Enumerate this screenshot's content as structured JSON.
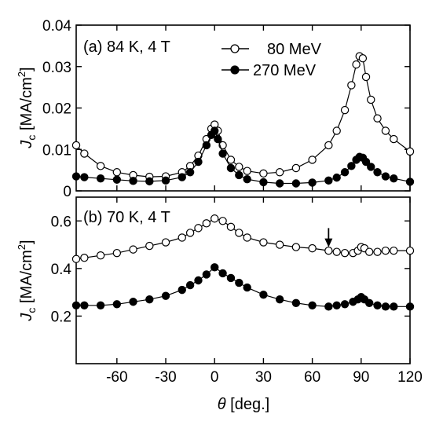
{
  "chart_data": [
    {
      "type": "scatter",
      "panel_label": "(b) 70 K, 4 T",
      "xlabel": "θ [deg.]",
      "ylabel": "Jc [MA/cm²]",
      "xlim": [
        -85,
        120
      ],
      "ylim": [
        0.0,
        0.7
      ],
      "xticks": [
        -60,
        -30,
        0,
        30,
        60,
        90,
        120
      ],
      "xtick_labels": [
        "-60",
        "-30",
        "0",
        "30",
        "60",
        "90",
        "120"
      ],
      "yticks": [
        0.2,
        0.4,
        0.6
      ],
      "ytick_labels": [
        "0.2",
        "0.4",
        "0.6"
      ],
      "grid": false,
      "annotation": {
        "type": "arrow",
        "x": 70,
        "from_y": 0.57,
        "to_y": 0.49
      },
      "series": [
        {
          "name": "80 MeV",
          "marker": "open-circle",
          "x": [
            -85,
            -80,
            -70,
            -60,
            -50,
            -40,
            -30,
            -20,
            -15,
            -10,
            -5,
            0,
            5,
            10,
            15,
            20,
            30,
            40,
            50,
            60,
            70,
            75,
            80,
            85,
            88,
            90,
            92,
            95,
            100,
            105,
            110,
            120
          ],
          "y": [
            0.44,
            0.445,
            0.455,
            0.465,
            0.48,
            0.495,
            0.51,
            0.53,
            0.55,
            0.57,
            0.59,
            0.61,
            0.6,
            0.575,
            0.55,
            0.53,
            0.51,
            0.5,
            0.49,
            0.485,
            0.475,
            0.47,
            0.465,
            0.465,
            0.475,
            0.49,
            0.485,
            0.47,
            0.47,
            0.475,
            0.475,
            0.475
          ]
        },
        {
          "name": "270 MeV",
          "marker": "filled-circle",
          "x": [
            -85,
            -80,
            -70,
            -60,
            -50,
            -40,
            -30,
            -20,
            -15,
            -10,
            -5,
            0,
            5,
            10,
            15,
            20,
            30,
            40,
            50,
            60,
            70,
            75,
            80,
            85,
            88,
            90,
            92,
            95,
            100,
            105,
            110,
            120
          ],
          "y": [
            0.245,
            0.245,
            0.245,
            0.25,
            0.26,
            0.27,
            0.285,
            0.31,
            0.33,
            0.35,
            0.375,
            0.405,
            0.38,
            0.36,
            0.34,
            0.32,
            0.29,
            0.27,
            0.255,
            0.245,
            0.24,
            0.245,
            0.25,
            0.26,
            0.27,
            0.28,
            0.27,
            0.255,
            0.245,
            0.24,
            0.24,
            0.24
          ]
        }
      ]
    },
    {
      "type": "scatter",
      "panel_label": "(a)  84 K, 4 T",
      "xlabel": "",
      "ylabel": "Jc [MA/cm²]",
      "xlim": [
        -85,
        120
      ],
      "ylim": [
        0.0,
        0.04
      ],
      "xticks": [
        -60,
        -30,
        0,
        30,
        60,
        90,
        120
      ],
      "yticks": [
        0.0,
        0.01,
        0.02,
        0.03,
        0.04
      ],
      "ytick_labels": [
        "0",
        "0.01",
        "0.02",
        "0.03",
        "0.04"
      ],
      "grid": false,
      "legend_position": "top-right",
      "series": [
        {
          "name": "80 MeV",
          "marker": "open-circle",
          "x": [
            -85,
            -80,
            -70,
            -60,
            -50,
            -40,
            -30,
            -20,
            -15,
            -10,
            -5,
            -2,
            0,
            2,
            5,
            10,
            15,
            20,
            30,
            40,
            50,
            60,
            70,
            75,
            80,
            84,
            87,
            89,
            91,
            93,
            96,
            100,
            105,
            110,
            120
          ],
          "y": [
            0.011,
            0.009,
            0.006,
            0.0045,
            0.0038,
            0.0034,
            0.0035,
            0.0045,
            0.006,
            0.0085,
            0.0125,
            0.015,
            0.016,
            0.0145,
            0.011,
            0.0075,
            0.0058,
            0.0048,
            0.0042,
            0.0045,
            0.0055,
            0.0075,
            0.011,
            0.0145,
            0.0195,
            0.0255,
            0.0305,
            0.0325,
            0.032,
            0.0275,
            0.022,
            0.0175,
            0.0145,
            0.0125,
            0.0095
          ]
        },
        {
          "name": "270 MeV",
          "marker": "filled-circle",
          "x": [
            -85,
            -80,
            -70,
            -60,
            -50,
            -40,
            -30,
            -20,
            -15,
            -10,
            -5,
            -2,
            0,
            2,
            5,
            10,
            15,
            20,
            30,
            40,
            50,
            60,
            70,
            75,
            80,
            84,
            87,
            89,
            91,
            93,
            96,
            100,
            105,
            110,
            120
          ],
          "y": [
            0.0035,
            0.0033,
            0.003,
            0.0027,
            0.0024,
            0.0023,
            0.0025,
            0.0033,
            0.0045,
            0.007,
            0.011,
            0.0135,
            0.0145,
            0.0125,
            0.009,
            0.0055,
            0.0038,
            0.0028,
            0.0021,
            0.0018,
            0.0018,
            0.002,
            0.0025,
            0.0032,
            0.0045,
            0.006,
            0.0075,
            0.0082,
            0.008,
            0.007,
            0.0058,
            0.0045,
            0.0035,
            0.003,
            0.0022
          ]
        }
      ]
    }
  ],
  "figure": {
    "xlabel_symbol": "θ",
    "xlabel_unit": " [deg.]",
    "ylabel_symbol": "J",
    "ylabel_subscript": "c",
    "ylabel_unit": " [MA/cm",
    "ylabel_sup": "2",
    "ylabel_close": "]",
    "legend": [
      {
        "label": "80 MeV",
        "marker": "open-circle"
      },
      {
        "label": "270 MeV",
        "marker": "filled-circle"
      }
    ],
    "colors": {
      "axes": "#000000",
      "marker_fill": "#000000",
      "open_fill": "#ffffff"
    }
  }
}
